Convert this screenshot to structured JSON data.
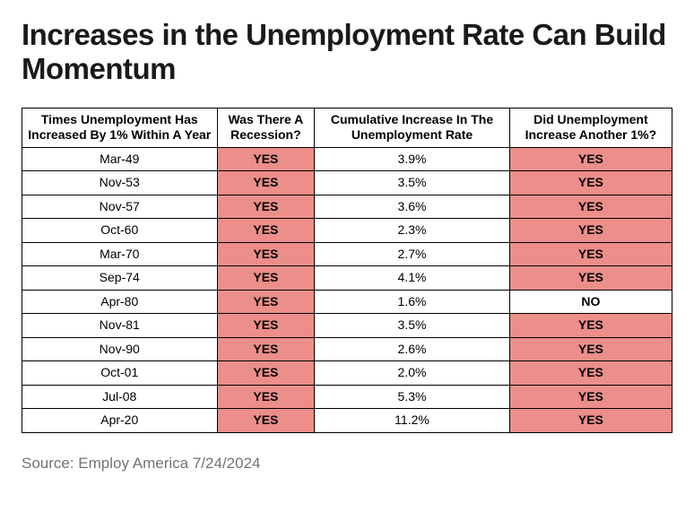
{
  "title": "Increases in the Unemployment Rate Can Build Momentum",
  "highlight_color": "#ec8e89",
  "border_color": "#000000",
  "background_color": "#ffffff",
  "text_color": "#000000",
  "source_color": "#6f7378",
  "table": {
    "columns": [
      "Times Unemployment Has Increased By 1% Within A Year",
      "Was There A Recession?",
      "Cumulative Increase In The Unemployment Rate",
      "Did Unemployment Increase Another 1%?"
    ],
    "col_widths_pct": [
      30,
      15,
      30,
      25
    ],
    "rows": [
      {
        "date": "Mar-49",
        "recession": "YES",
        "cumulative": "3.9%",
        "another": "YES",
        "another_hl": true
      },
      {
        "date": "Nov-53",
        "recession": "YES",
        "cumulative": "3.5%",
        "another": "YES",
        "another_hl": true
      },
      {
        "date": "Nov-57",
        "recession": "YES",
        "cumulative": "3.6%",
        "another": "YES",
        "another_hl": true
      },
      {
        "date": "Oct-60",
        "recession": "YES",
        "cumulative": "2.3%",
        "another": "YES",
        "another_hl": true
      },
      {
        "date": "Mar-70",
        "recession": "YES",
        "cumulative": "2.7%",
        "another": "YES",
        "another_hl": true
      },
      {
        "date": "Sep-74",
        "recession": "YES",
        "cumulative": "4.1%",
        "another": "YES",
        "another_hl": true
      },
      {
        "date": "Apr-80",
        "recession": "YES",
        "cumulative": "1.6%",
        "another": "NO",
        "another_hl": false
      },
      {
        "date": "Nov-81",
        "recession": "YES",
        "cumulative": "3.5%",
        "another": "YES",
        "another_hl": true
      },
      {
        "date": "Nov-90",
        "recession": "YES",
        "cumulative": "2.6%",
        "another": "YES",
        "another_hl": true
      },
      {
        "date": "Oct-01",
        "recession": "YES",
        "cumulative": "2.0%",
        "another": "YES",
        "another_hl": true
      },
      {
        "date": "Jul-08",
        "recession": "YES",
        "cumulative": "5.3%",
        "another": "YES",
        "another_hl": true
      },
      {
        "date": "Apr-20",
        "recession": "YES",
        "cumulative": "11.2%",
        "another": "YES",
        "another_hl": true
      }
    ]
  },
  "source": "Source: Employ America 7/24/2024"
}
